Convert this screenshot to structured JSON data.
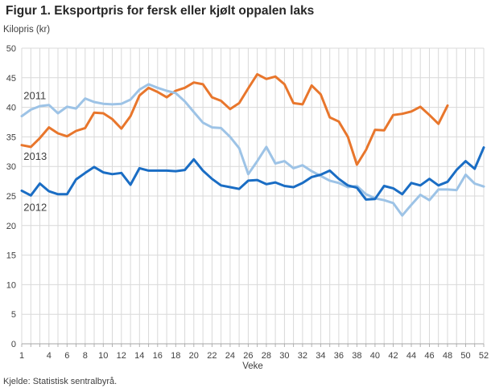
{
  "title": "Figur 1. Eksportpris for fersk eller kjølt oppalen laks",
  "source": "Kjelde: Statistisk sentralbyrå.",
  "chart_data": {
    "type": "line",
    "title": "Figur 1. Eksportpris for fersk eller kjølt oppalen laks",
    "xlabel": "Veke",
    "ylabel": "Kilopris (kr)",
    "xlim": [
      1,
      52
    ],
    "ylim": [
      0,
      50
    ],
    "y_ticks": [
      0,
      5,
      10,
      15,
      20,
      25,
      30,
      35,
      40,
      45,
      50
    ],
    "x_tick_labels": [
      1,
      4,
      6,
      8,
      10,
      12,
      14,
      16,
      18,
      20,
      22,
      24,
      26,
      28,
      30,
      32,
      34,
      36,
      38,
      40,
      42,
      44,
      46,
      48,
      50,
      52
    ],
    "grid": true,
    "legend_position": "inline-annotations",
    "z_order": [
      "2013",
      "2011",
      "2012"
    ],
    "series": [
      {
        "name": "2011",
        "color": "#9dc3e6",
        "label": {
          "text": "2011",
          "week": 1.2,
          "value": 41.4
        },
        "start_week": 1,
        "values": [
          38.5,
          39.6,
          40.2,
          40.4,
          39.0,
          40.1,
          39.8,
          41.5,
          40.9,
          40.6,
          40.5,
          40.6,
          41.3,
          43.0,
          43.9,
          43.3,
          42.8,
          42.4,
          41.0,
          39.2,
          37.4,
          36.6,
          36.5,
          35.0,
          33.1,
          28.7,
          30.9,
          33.3,
          30.5,
          30.9,
          29.7,
          30.2,
          29.2,
          28.4,
          27.6,
          27.2,
          26.5,
          26.7,
          25.3,
          24.6,
          24.3,
          23.8,
          21.7,
          23.5,
          25.2,
          24.3,
          26.1,
          26.1,
          26.0,
          28.6,
          27.1,
          26.6
        ]
      },
      {
        "name": "2012",
        "color": "#1a6dc4",
        "label": {
          "text": "2012",
          "week": 1.2,
          "value": 22.5
        },
        "start_week": 1,
        "values": [
          25.9,
          25.1,
          27.1,
          25.8,
          25.3,
          25.3,
          27.8,
          28.9,
          29.9,
          29.0,
          28.7,
          28.9,
          26.9,
          29.7,
          29.3,
          29.3,
          29.3,
          29.2,
          29.4,
          31.2,
          29.3,
          27.9,
          26.8,
          26.5,
          26.2,
          27.6,
          27.7,
          27.0,
          27.3,
          26.7,
          26.5,
          27.2,
          28.2,
          28.6,
          29.3,
          27.9,
          26.8,
          26.4,
          24.4,
          24.5,
          26.7,
          26.3,
          25.3,
          27.2,
          26.8,
          27.9,
          26.8,
          27.4,
          29.4,
          30.9,
          29.6,
          33.2
        ]
      },
      {
        "name": "2013",
        "color": "#e8762c",
        "label": {
          "text": "2013",
          "week": 1.2,
          "value": 31.1
        },
        "start_week": 1,
        "values": [
          33.6,
          33.3,
          34.8,
          36.6,
          35.6,
          35.1,
          36.0,
          36.5,
          39.1,
          39.0,
          38.0,
          36.4,
          38.5,
          42.0,
          43.3,
          42.6,
          41.7,
          42.8,
          43.3,
          44.2,
          43.9,
          41.7,
          41.1,
          39.7,
          40.7,
          43.2,
          45.6,
          44.8,
          45.2,
          43.9,
          40.7,
          40.5,
          43.7,
          42.2,
          38.3,
          37.6,
          35.0,
          30.3,
          32.8,
          36.2,
          36.1,
          38.7,
          38.9,
          39.3,
          40.1,
          38.7,
          37.2,
          40.3
        ]
      }
    ]
  }
}
